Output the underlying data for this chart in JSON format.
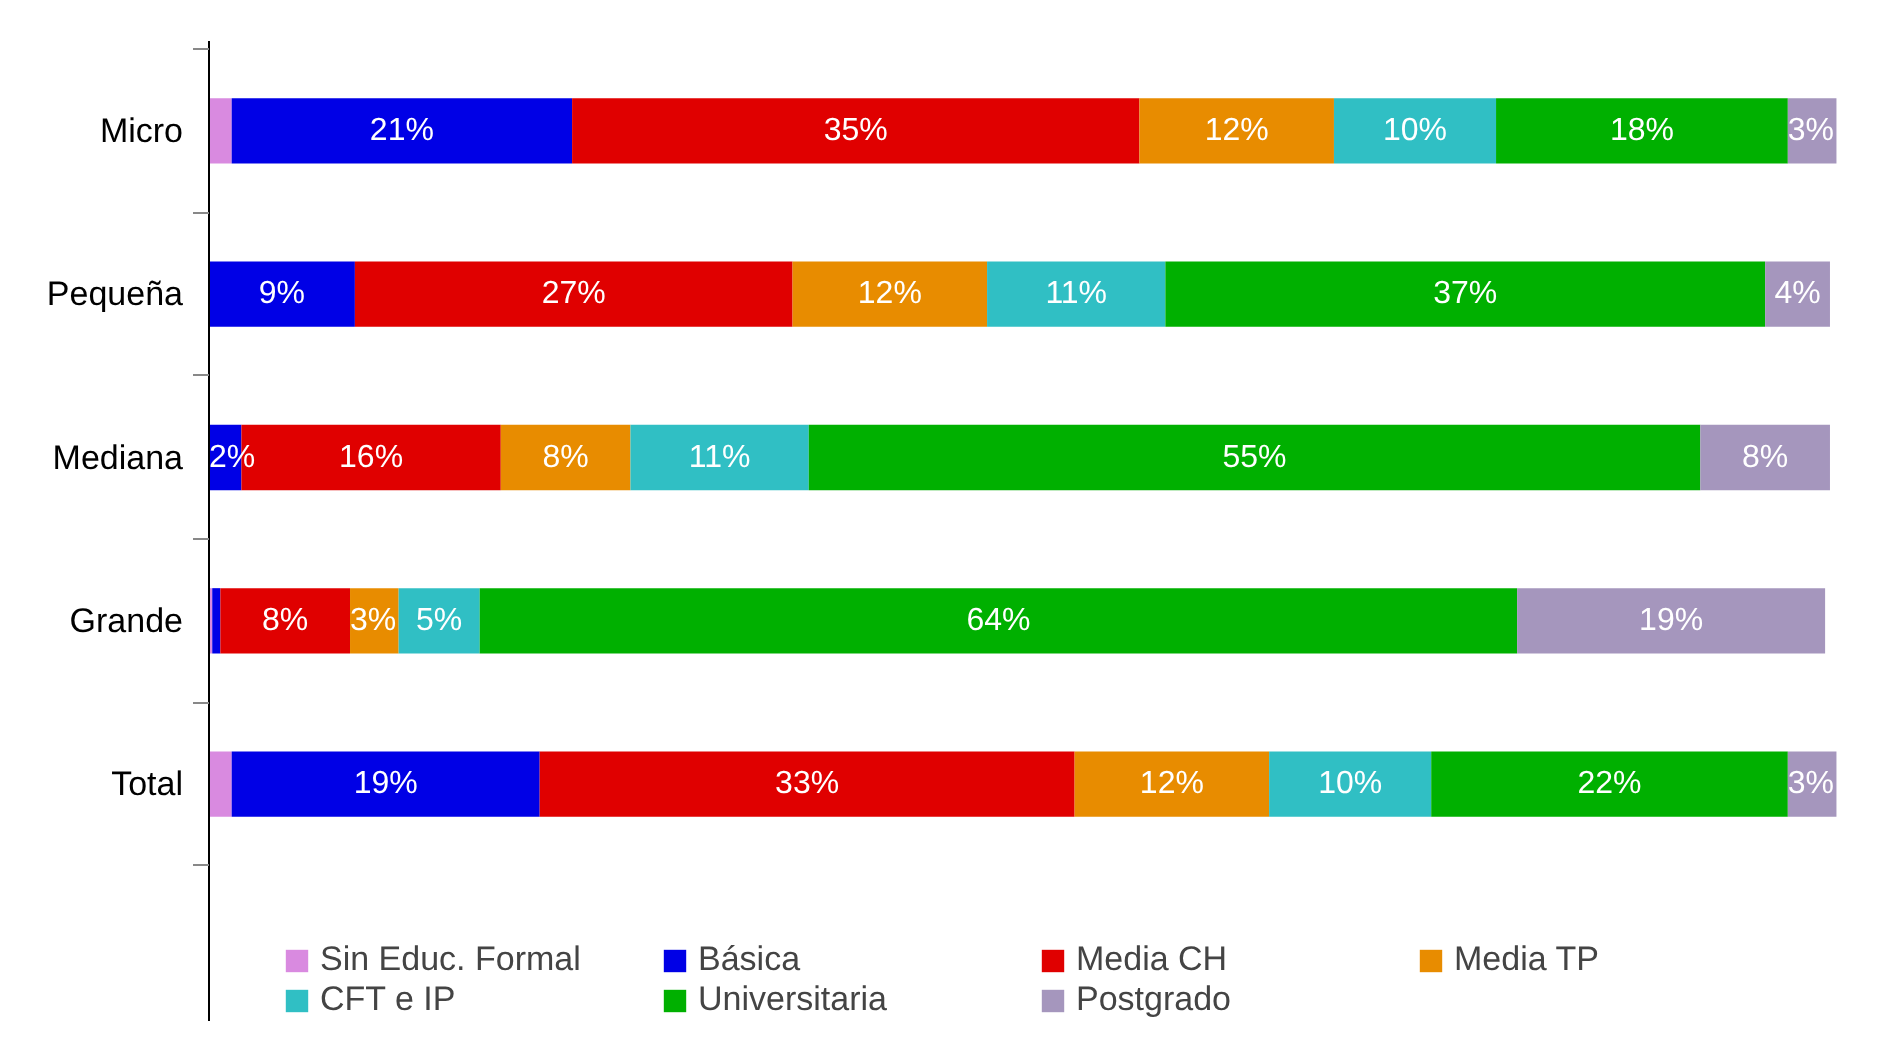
{
  "chart_data": {
    "type": "bar",
    "orientation": "horizontal",
    "stacked": true,
    "legend": "bottom",
    "grid": false,
    "categories": [
      "Micro",
      "Pequeña",
      "Mediana",
      "Grande",
      "Total"
    ],
    "series": [
      {
        "name": "Sin Educ. Formal",
        "color": "#d98ae0",
        "values": [
          1.4,
          0,
          0,
          0.2,
          1.4
        ],
        "value_labels": [
          null,
          null,
          null,
          null,
          null
        ]
      },
      {
        "name": "Básica",
        "color": "#0000e6",
        "values": [
          21,
          9,
          2,
          0.5,
          19
        ],
        "value_labels": [
          "21%",
          "9%",
          "2%",
          null,
          "19%"
        ]
      },
      {
        "name": "Media CH",
        "color": "#e00000",
        "values": [
          35,
          27,
          16,
          8,
          33
        ],
        "value_labels": [
          "35%",
          "27%",
          "16%",
          "8%",
          "33%"
        ]
      },
      {
        "name": "Media TP",
        "color": "#e88c00",
        "values": [
          12,
          12,
          8,
          3,
          12
        ],
        "value_labels": [
          "12%",
          "12%",
          "8%",
          "3%",
          "12%"
        ]
      },
      {
        "name": "CFT e IP",
        "color": "#30bfc4",
        "values": [
          10,
          11,
          11,
          5,
          10
        ],
        "value_labels": [
          "10%",
          "11%",
          "11%",
          "5%",
          "10%"
        ]
      },
      {
        "name": "Universitaria",
        "color": "#00b000",
        "values": [
          18,
          37,
          55,
          64,
          22
        ],
        "value_labels": [
          "18%",
          "37%",
          "55%",
          "64%",
          "22%"
        ]
      },
      {
        "name": "Postgrado",
        "color": "#a596bd",
        "values": [
          3,
          4,
          8,
          19,
          3
        ],
        "value_labels": [
          "3%",
          "4%",
          "8%",
          "19%",
          "3%"
        ]
      }
    ]
  }
}
